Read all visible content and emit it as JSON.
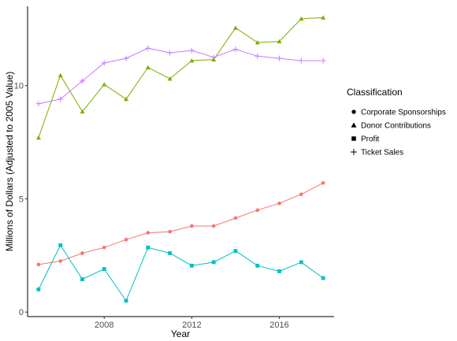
{
  "chart_data": {
    "type": "line",
    "title": "",
    "xlabel": "Year",
    "ylabel": "Millions of Dollars (Adjusted to 2005 Value)",
    "x": [
      2005,
      2006,
      2007,
      2008,
      2009,
      2010,
      2011,
      2012,
      2013,
      2014,
      2015,
      2016,
      2017,
      2018
    ],
    "xlim": [
      2004.5,
      2018.5
    ],
    "ylim": [
      -0.2,
      13.5
    ],
    "xticks": [
      2008,
      2012,
      2016
    ],
    "yticks": [
      0,
      5,
      10
    ],
    "grid": false,
    "legend": {
      "title": "Classification",
      "position": "right"
    },
    "series": [
      {
        "name": "Corporate Sponsorships",
        "marker": "circle",
        "color": "#F8766D",
        "values": [
          2.1,
          2.25,
          2.6,
          2.85,
          3.2,
          3.5,
          3.55,
          3.8,
          3.8,
          4.15,
          4.5,
          4.8,
          5.2,
          5.7
        ]
      },
      {
        "name": "Donor Contributions",
        "marker": "triangle",
        "color": "#7CAE00",
        "values": [
          7.7,
          10.45,
          8.85,
          10.05,
          9.4,
          10.8,
          10.3,
          11.1,
          11.15,
          12.55,
          11.9,
          11.95,
          12.95,
          13.0
        ]
      },
      {
        "name": "Profit",
        "marker": "square",
        "color": "#00BFC4",
        "values": [
          1.0,
          2.95,
          1.45,
          1.9,
          0.5,
          2.85,
          2.6,
          2.05,
          2.2,
          2.7,
          2.05,
          1.8,
          2.2,
          1.5
        ]
      },
      {
        "name": "Ticket Sales",
        "marker": "plus",
        "color": "#C77CFF",
        "values": [
          9.2,
          9.4,
          10.2,
          11.0,
          11.2,
          11.65,
          11.45,
          11.55,
          11.25,
          11.6,
          11.3,
          11.2,
          11.1,
          11.1
        ]
      }
    ]
  }
}
